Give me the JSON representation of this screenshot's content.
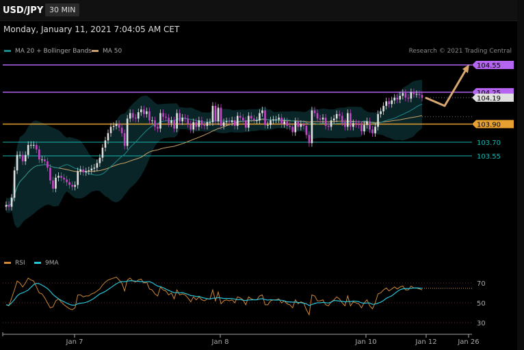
{
  "header": {
    "symbol": "USD/JPY",
    "interval": "30 MIN",
    "datetime": "Monday, January 11, 2021 7:04:05 AM CET"
  },
  "legend": {
    "ma20": "MA 20 + Bollinger Bands",
    "ma50": "MA 50",
    "credit": "Research © 2021 Trading Central"
  },
  "rsi_legend": {
    "rsi": "RSI",
    "ma9": "9MA"
  },
  "colors": {
    "resistance": "#b565f2",
    "pivot": "#e8a030",
    "support": "#19b6b2",
    "ma20": "#1d8a8a",
    "ma50": "#c9a36a",
    "bull": "#e2e2e2",
    "bear": "#c545c5",
    "arrow": "#d9a870",
    "rsi": "#d08838",
    "rsi_ma": "#29c3d8"
  },
  "chart_data": [
    {
      "type": "candlestick",
      "title": "USD/JPY 30 MIN",
      "x_labels": [
        "Jan 7",
        "Jan 8",
        "Jan 10",
        "Jan 12",
        "Jan 26"
      ],
      "levels": [
        {
          "label": "104.55",
          "value": 104.55,
          "kind": "resistance"
        },
        {
          "label": "104.25",
          "value": 104.25,
          "kind": "resistance"
        },
        {
          "label": "104.19",
          "value": 104.19,
          "kind": "last_price"
        },
        {
          "label": "103.90",
          "value": 103.9,
          "kind": "pivot"
        },
        {
          "label": "103.70",
          "value": 103.7,
          "kind": "support"
        },
        {
          "label": "103.55",
          "value": 103.55,
          "kind": "support"
        }
      ],
      "close": [
        103.01,
        102.99,
        103.09,
        103.39,
        103.56,
        103.56,
        103.49,
        103.56,
        103.67,
        103.67,
        103.67,
        103.62,
        103.51,
        103.51,
        103.49,
        103.42,
        103.28,
        103.19,
        103.31,
        103.33,
        103.31,
        103.29,
        103.26,
        103.23,
        103.21,
        103.23,
        103.38,
        103.4,
        103.37,
        103.38,
        103.39,
        103.41,
        103.42,
        103.47,
        103.53,
        103.64,
        103.72,
        103.8,
        103.87,
        103.88,
        103.9,
        103.86,
        103.8,
        103.66,
        103.96,
        104.02,
        103.97,
        103.96,
        104.03,
        104.06,
        104.01,
        104.04,
        103.94,
        103.94,
        103.87,
        103.85,
        104.02,
        103.98,
        103.97,
        103.91,
        103.94,
        103.85,
        104.02,
        103.93,
        103.97,
        103.96,
        103.9,
        103.84,
        103.92,
        103.87,
        103.94,
        103.89,
        103.88,
        103.92,
        103.92,
        104.1,
        103.93,
        104.08,
        103.88,
        103.92,
        103.93,
        103.92,
        103.94,
        103.88,
        103.99,
        103.97,
        103.94,
        103.86,
        103.99,
        103.96,
        103.94,
        103.94,
        104.02,
        104.05,
        103.89,
        103.89,
        103.94,
        103.95,
        103.95,
        103.97,
        103.9,
        103.93,
        103.88,
        103.87,
        103.81,
        103.93,
        103.87,
        103.9,
        103.88,
        103.78,
        103.69,
        104.05,
        104.02,
        103.96,
        103.95,
        103.97,
        103.88,
        103.87,
        103.94,
        103.96,
        104.01,
        103.99,
        103.92,
        103.87,
        104.02,
        103.87,
        103.91,
        103.9,
        103.89,
        103.82,
        103.89,
        103.93,
        103.84,
        103.8,
        103.87,
        104.01,
        104.04,
        104.1,
        104.15,
        104.12,
        104.16,
        104.19,
        104.17,
        104.21,
        104.24,
        104.19,
        104.18,
        104.25,
        104.23,
        104.23,
        104.22,
        104.19
      ],
      "open": [
        102.99,
        103.01,
        102.99,
        103.09,
        103.39,
        103.56,
        103.56,
        103.49,
        103.56,
        103.67,
        103.67,
        103.67,
        103.62,
        103.51,
        103.51,
        103.49,
        103.42,
        103.28,
        103.19,
        103.31,
        103.33,
        103.31,
        103.29,
        103.26,
        103.23,
        103.21,
        103.23,
        103.38,
        103.4,
        103.37,
        103.38,
        103.39,
        103.41,
        103.42,
        103.47,
        103.53,
        103.64,
        103.72,
        103.8,
        103.87,
        103.88,
        103.9,
        103.86,
        103.8,
        103.66,
        103.96,
        104.02,
        103.97,
        103.96,
        104.03,
        104.06,
        104.01,
        104.04,
        103.94,
        103.94,
        103.87,
        103.85,
        104.02,
        103.98,
        103.97,
        103.91,
        103.94,
        103.85,
        104.02,
        103.93,
        103.97,
        103.96,
        103.9,
        103.84,
        103.92,
        103.87,
        103.94,
        103.89,
        103.88,
        103.92,
        103.92,
        104.1,
        103.93,
        104.08,
        103.88,
        103.92,
        103.93,
        103.92,
        103.94,
        103.88,
        103.99,
        103.97,
        103.94,
        103.86,
        103.99,
        103.96,
        103.94,
        103.94,
        104.02,
        104.05,
        103.89,
        103.89,
        103.94,
        103.95,
        103.95,
        103.97,
        103.9,
        103.93,
        103.88,
        103.87,
        103.81,
        103.93,
        103.87,
        103.9,
        103.88,
        103.78,
        103.69,
        104.05,
        104.02,
        103.96,
        103.95,
        103.97,
        103.88,
        103.87,
        103.94,
        103.96,
        104.01,
        103.99,
        103.92,
        103.87,
        104.02,
        103.87,
        103.91,
        103.9,
        103.89,
        103.82,
        103.89,
        103.93,
        103.84,
        103.8,
        103.87,
        104.01,
        104.04,
        104.1,
        104.15,
        104.12,
        104.16,
        104.19,
        104.17,
        104.21,
        104.24,
        104.19,
        104.18,
        104.25,
        104.23,
        104.23,
        104.22
      ],
      "ma20_label": "MA 20 + Bollinger Bands",
      "ma50_label": "MA 50",
      "forecast": {
        "from": 104.19,
        "dip": 104.1,
        "target": 104.55
      }
    },
    {
      "type": "line",
      "series": [
        {
          "name": "RSI"
        },
        {
          "name": "9MA"
        }
      ],
      "y_ticks": [
        30,
        50,
        70
      ],
      "ylim": [
        20,
        80
      ],
      "rsi_values": [
        48,
        47,
        55,
        63,
        72,
        70,
        66,
        70,
        75,
        73,
        72,
        66,
        60,
        59,
        55,
        50,
        45,
        46,
        52,
        54,
        51,
        48,
        46,
        44,
        43,
        45,
        58,
        58,
        56,
        57,
        57,
        59,
        60,
        62,
        64,
        68,
        71,
        73,
        74,
        75,
        76,
        73,
        70,
        62,
        73,
        75,
        72,
        71,
        73,
        74,
        70,
        71,
        64,
        63,
        59,
        57,
        66,
        63,
        62,
        58,
        60,
        54,
        63,
        58,
        59,
        58,
        55,
        51,
        56,
        53,
        56,
        53,
        52,
        54,
        54,
        63,
        52,
        61,
        49,
        52,
        53,
        52,
        53,
        50,
        56,
        55,
        53,
        48,
        56,
        54,
        53,
        53,
        57,
        58,
        48,
        48,
        52,
        53,
        53,
        54,
        50,
        52,
        49,
        48,
        45,
        53,
        49,
        51,
        50,
        43,
        38,
        58,
        57,
        52,
        52,
        53,
        48,
        47,
        51,
        53,
        56,
        54,
        50,
        47,
        57,
        47,
        51,
        50,
        49,
        45,
        50,
        53,
        47,
        44,
        50,
        59,
        60,
        63,
        65,
        62,
        64,
        66,
        64,
        66,
        67,
        63,
        63,
        67,
        65,
        65,
        64,
        63
      ]
    }
  ]
}
